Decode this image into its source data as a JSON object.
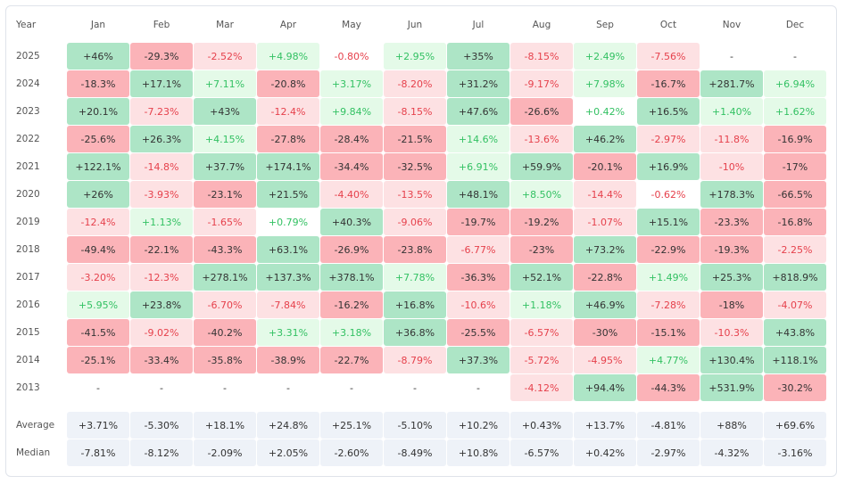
{
  "table": {
    "header": [
      "Year",
      "Jan",
      "Feb",
      "Mar",
      "Apr",
      "May",
      "Jun",
      "Jul",
      "Aug",
      "Sep",
      "Oct",
      "Nov",
      "Dec"
    ],
    "rows": [
      {
        "year": "2025",
        "cells": [
          "+46%",
          "-29.3%",
          "-2.52%",
          "+4.98%",
          "-0.80%",
          "+2.95%",
          "+35%",
          "-8.15%",
          "+2.49%",
          "-7.56%",
          "-",
          "-"
        ]
      },
      {
        "year": "2024",
        "cells": [
          "-18.3%",
          "+17.1%",
          "+7.11%",
          "-20.8%",
          "+3.17%",
          "-8.20%",
          "+31.2%",
          "-9.17%",
          "+7.98%",
          "-16.7%",
          "+281.7%",
          "+6.94%"
        ]
      },
      {
        "year": "2023",
        "cells": [
          "+20.1%",
          "-7.23%",
          "+43%",
          "-12.4%",
          "+9.84%",
          "-8.15%",
          "+47.6%",
          "-26.6%",
          "+0.42%",
          "+16.5%",
          "+1.40%",
          "+1.62%"
        ]
      },
      {
        "year": "2022",
        "cells": [
          "-25.6%",
          "+26.3%",
          "+4.15%",
          "-27.8%",
          "-28.4%",
          "-21.5%",
          "+14.6%",
          "-13.6%",
          "+46.2%",
          "-2.97%",
          "-11.8%",
          "-16.9%"
        ]
      },
      {
        "year": "2021",
        "cells": [
          "+122.1%",
          "-14.8%",
          "+37.7%",
          "+174.1%",
          "-34.4%",
          "-32.5%",
          "+6.91%",
          "+59.9%",
          "-20.1%",
          "+16.9%",
          "-10%",
          "-17%"
        ]
      },
      {
        "year": "2020",
        "cells": [
          "+26%",
          "-3.93%",
          "-23.1%",
          "+21.5%",
          "-4.40%",
          "-13.5%",
          "+48.1%",
          "+8.50%",
          "-14.4%",
          "-0.62%",
          "+178.3%",
          "-66.5%"
        ]
      },
      {
        "year": "2019",
        "cells": [
          "-12.4%",
          "+1.13%",
          "-1.65%",
          "+0.79%",
          "+40.3%",
          "-9.06%",
          "-19.7%",
          "-19.2%",
          "-1.07%",
          "+15.1%",
          "-23.3%",
          "-16.8%"
        ]
      },
      {
        "year": "2018",
        "cells": [
          "-49.4%",
          "-22.1%",
          "-43.3%",
          "+63.1%",
          "-26.9%",
          "-23.8%",
          "-6.77%",
          "-23%",
          "+73.2%",
          "-22.9%",
          "-19.3%",
          "-2.25%"
        ]
      },
      {
        "year": "2017",
        "cells": [
          "-3.20%",
          "-12.3%",
          "+278.1%",
          "+137.3%",
          "+378.1%",
          "+7.78%",
          "-36.3%",
          "+52.1%",
          "-22.8%",
          "+1.49%",
          "+25.3%",
          "+818.9%"
        ]
      },
      {
        "year": "2016",
        "cells": [
          "+5.95%",
          "+23.8%",
          "-6.70%",
          "-7.84%",
          "-16.2%",
          "+16.8%",
          "-10.6%",
          "+1.18%",
          "+46.9%",
          "-7.28%",
          "-18%",
          "-4.07%"
        ]
      },
      {
        "year": "2015",
        "cells": [
          "-41.5%",
          "-9.02%",
          "-40.2%",
          "+3.31%",
          "+3.18%",
          "+36.8%",
          "-25.5%",
          "-6.57%",
          "-30%",
          "-15.1%",
          "-10.3%",
          "+43.8%"
        ]
      },
      {
        "year": "2014",
        "cells": [
          "-25.1%",
          "-33.4%",
          "-35.8%",
          "-38.9%",
          "-22.7%",
          "-8.79%",
          "+37.3%",
          "-5.72%",
          "-4.95%",
          "+4.77%",
          "+130.4%",
          "+118.1%"
        ]
      },
      {
        "year": "2013",
        "cells": [
          "-",
          "-",
          "-",
          "-",
          "-",
          "-",
          "-",
          "-4.12%",
          "+94.4%",
          "-44.3%",
          "+531.9%",
          "-30.2%"
        ]
      }
    ],
    "summary": [
      {
        "label": "Average",
        "cells": [
          "+3.71%",
          "-5.30%",
          "+18.1%",
          "+24.8%",
          "+25.1%",
          "-5.10%",
          "+10.2%",
          "+0.43%",
          "+13.7%",
          "-4.81%",
          "+88%",
          "+69.6%"
        ]
      },
      {
        "label": "Median",
        "cells": [
          "-7.81%",
          "-8.12%",
          "-2.09%",
          "+2.05%",
          "-2.60%",
          "-8.49%",
          "+10.8%",
          "-6.57%",
          "+0.42%",
          "-2.97%",
          "-4.32%",
          "-3.16%"
        ]
      }
    ]
  }
}
